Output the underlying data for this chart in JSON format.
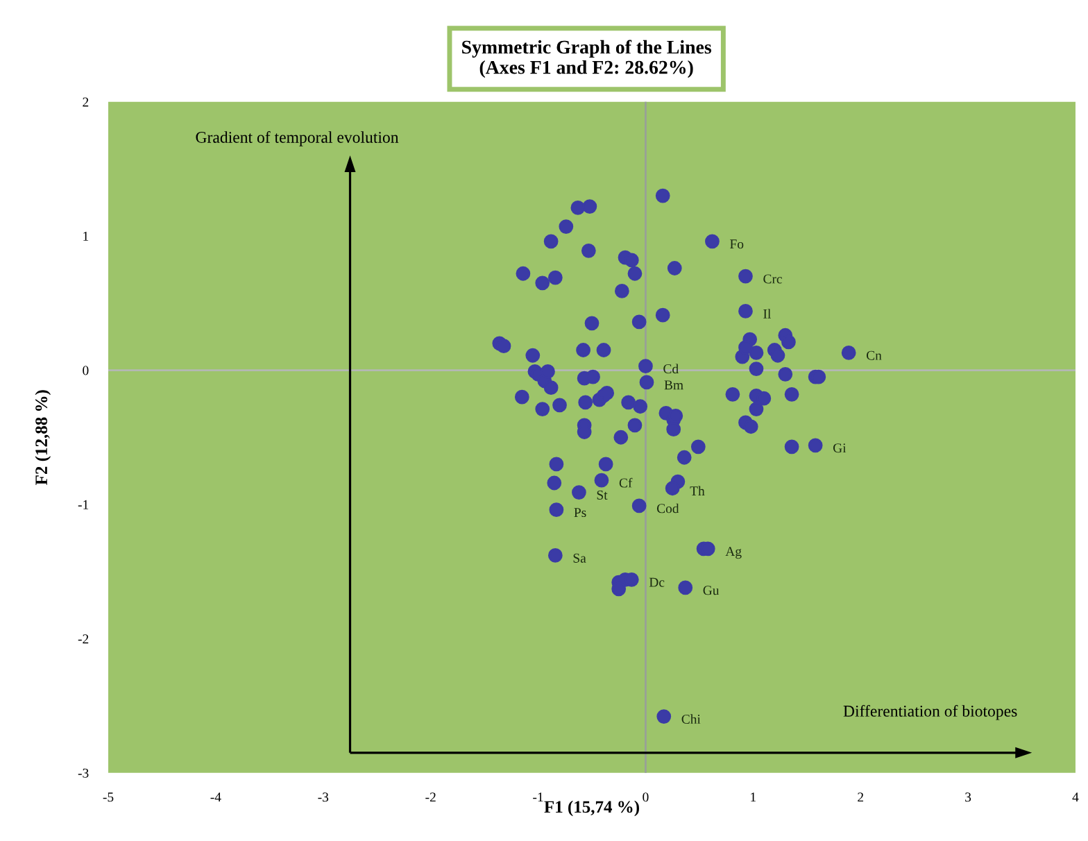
{
  "chart_data": {
    "type": "scatter",
    "title": "Symmetric Graph of the Lines\n(Axes F1 and F2: 28.62%)",
    "xlabel": "F1 (15,74 %)",
    "ylabel": "F2 (12,88 %)",
    "xlim": [
      -5,
      4
    ],
    "ylim": [
      -3,
      2
    ],
    "xticks": [
      -5,
      -4,
      -3,
      -2,
      -1,
      0,
      1,
      2,
      3,
      4
    ],
    "yticks": [
      -3,
      -2,
      -1,
      0,
      1,
      2
    ],
    "grid": false,
    "marker": "circle",
    "ref_lines": [
      {
        "axis": "x",
        "value": 0,
        "color": "#98a098"
      },
      {
        "axis": "y",
        "value": 0,
        "color": "#b4b8b4"
      }
    ],
    "series": [
      {
        "color": "#3b3ba6",
        "x": [
          0.16,
          -0.63,
          -0.52,
          -0.74,
          -0.88,
          -0.53,
          -0.19,
          -0.13,
          0.62,
          0.27,
          0.93,
          -1.14,
          -0.96,
          -0.84,
          -0.1,
          -0.22,
          0.93,
          -0.5,
          -0.06,
          0.16,
          -1.36,
          -1.32,
          -1.05,
          -0.58,
          -0.39,
          -1.03,
          0.0,
          0.97,
          1.03,
          0.9,
          0.93,
          1.3,
          1.33,
          1.2,
          1.23,
          1.89,
          1.03,
          1.3,
          1.58,
          1.61,
          0.01,
          -1.0,
          -0.94,
          -0.91,
          -0.88,
          -0.57,
          -0.49,
          -1.15,
          -0.96,
          -0.8,
          -0.56,
          -0.43,
          -0.39,
          -0.36,
          -0.16,
          -0.05,
          -0.57,
          -0.57,
          -0.1,
          -0.23,
          0.19,
          0.26,
          0.28,
          0.26,
          0.81,
          1.03,
          1.1,
          1.36,
          1.03,
          0.93,
          0.98,
          0.49,
          1.36,
          1.58,
          0.36,
          -0.83,
          -0.37,
          -0.85,
          -0.41,
          -0.62,
          -0.83,
          -0.06,
          0.3,
          0.25,
          -0.84,
          0.54,
          0.58,
          -0.25,
          -0.19,
          -0.13,
          -0.25,
          0.37,
          0.17
        ],
        "values": [
          1.3,
          1.21,
          1.22,
          1.07,
          0.96,
          0.89,
          0.84,
          0.82,
          0.96,
          0.76,
          0.7,
          0.72,
          0.65,
          0.69,
          0.72,
          0.59,
          0.44,
          0.35,
          0.36,
          0.41,
          0.2,
          0.18,
          0.11,
          0.15,
          0.15,
          -0.01,
          0.03,
          0.23,
          0.13,
          0.1,
          0.17,
          0.26,
          0.21,
          0.15,
          0.11,
          0.13,
          0.01,
          -0.03,
          -0.05,
          -0.05,
          -0.09,
          -0.03,
          -0.08,
          -0.01,
          -0.13,
          -0.06,
          -0.05,
          -0.2,
          -0.29,
          -0.26,
          -0.24,
          -0.22,
          -0.19,
          -0.17,
          -0.24,
          -0.27,
          -0.41,
          -0.46,
          -0.41,
          -0.5,
          -0.32,
          -0.37,
          -0.34,
          -0.44,
          -0.18,
          -0.19,
          -0.21,
          -0.18,
          -0.29,
          -0.39,
          -0.42,
          -0.57,
          -0.57,
          -0.56,
          -0.65,
          -0.7,
          -0.7,
          -0.84,
          -0.82,
          -0.91,
          -1.04,
          -1.01,
          -0.83,
          -0.88,
          -1.38,
          -1.33,
          -1.33,
          -1.58,
          -1.56,
          -1.56,
          -1.63,
          -1.62,
          -2.58
        ]
      }
    ],
    "annotations": [
      "Gradient of temporal evolution",
      "Differentiation of biotopes",
      {
        "text": "Fo",
        "x": 0.62,
        "y": 0.96
      },
      {
        "text": "Crc",
        "x": 0.93,
        "y": 0.7
      },
      {
        "text": "Il",
        "x": 0.93,
        "y": 0.44
      },
      {
        "text": "Cn",
        "x": 1.89,
        "y": 0.13
      },
      {
        "text": "Cd",
        "x": 0.0,
        "y": 0.03
      },
      {
        "text": "Bm",
        "x": 0.01,
        "y": -0.09
      },
      {
        "text": "Cod",
        "x": -0.06,
        "y": -1.01
      },
      {
        "text": "Ps",
        "x": -0.83,
        "y": -1.04
      },
      {
        "text": "Cf",
        "x": -0.41,
        "y": -0.82
      },
      {
        "text": "St",
        "x": -0.62,
        "y": -0.91
      },
      {
        "text": "Th",
        "x": 0.25,
        "y": -0.88
      },
      {
        "text": "Ag",
        "x": 0.58,
        "y": -1.33
      },
      {
        "text": "Gu",
        "x": 0.37,
        "y": -1.62
      },
      {
        "text": "Dc",
        "x": -0.13,
        "y": -1.56
      },
      {
        "text": "Chi",
        "x": 0.17,
        "y": -2.58
      },
      {
        "text": "Sa",
        "x": -0.84,
        "y": -1.38
      },
      {
        "text": "Gi",
        "x": 1.58,
        "y": -0.56
      }
    ]
  }
}
